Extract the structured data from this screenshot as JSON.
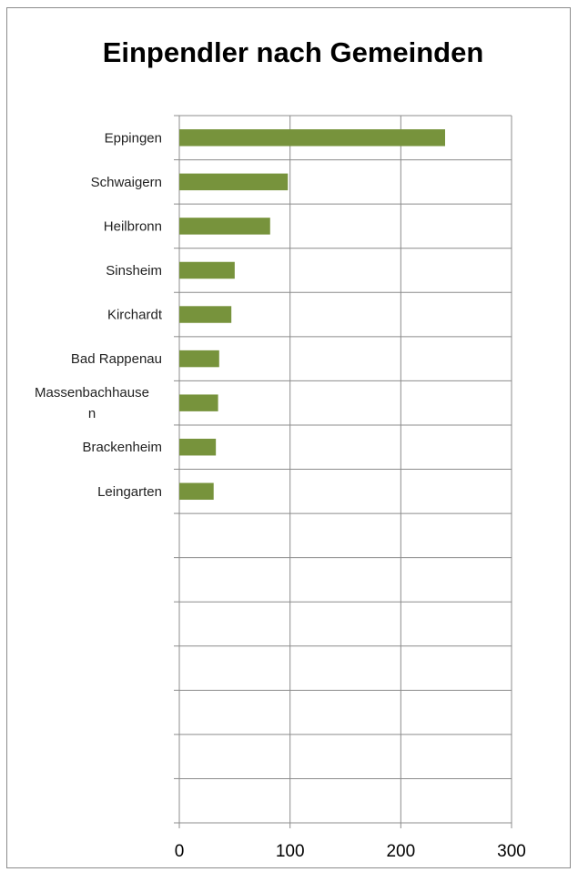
{
  "chart_data": {
    "type": "bar",
    "orientation": "horizontal",
    "title": "Einpendler nach Gemeinden",
    "xlabel": "",
    "ylabel": "",
    "categories": [
      "Eppingen",
      "Schwaigern",
      "Heilbronn",
      "Sinsheim",
      "Kirchardt",
      "Bad Rappenau",
      "Massenbachhausen",
      "Brackenheim",
      "Leingarten"
    ],
    "category_display": [
      [
        "Eppingen"
      ],
      [
        "Schwaigern"
      ],
      [
        "Heilbronn"
      ],
      [
        "Sinsheim"
      ],
      [
        "Kirchardt"
      ],
      [
        "Bad Rappenau"
      ],
      [
        "Massenbachhause",
        "n"
      ],
      [
        "Brackenheim"
      ],
      [
        "Leingarten"
      ]
    ],
    "values": [
      240,
      98,
      82,
      50,
      47,
      36,
      35,
      33,
      31
    ],
    "xlim": [
      0,
      300
    ],
    "xticks": [
      0,
      100,
      200,
      300
    ],
    "category_slots": 16,
    "grid": true,
    "legend": "none",
    "bar_color": "#77933c"
  }
}
